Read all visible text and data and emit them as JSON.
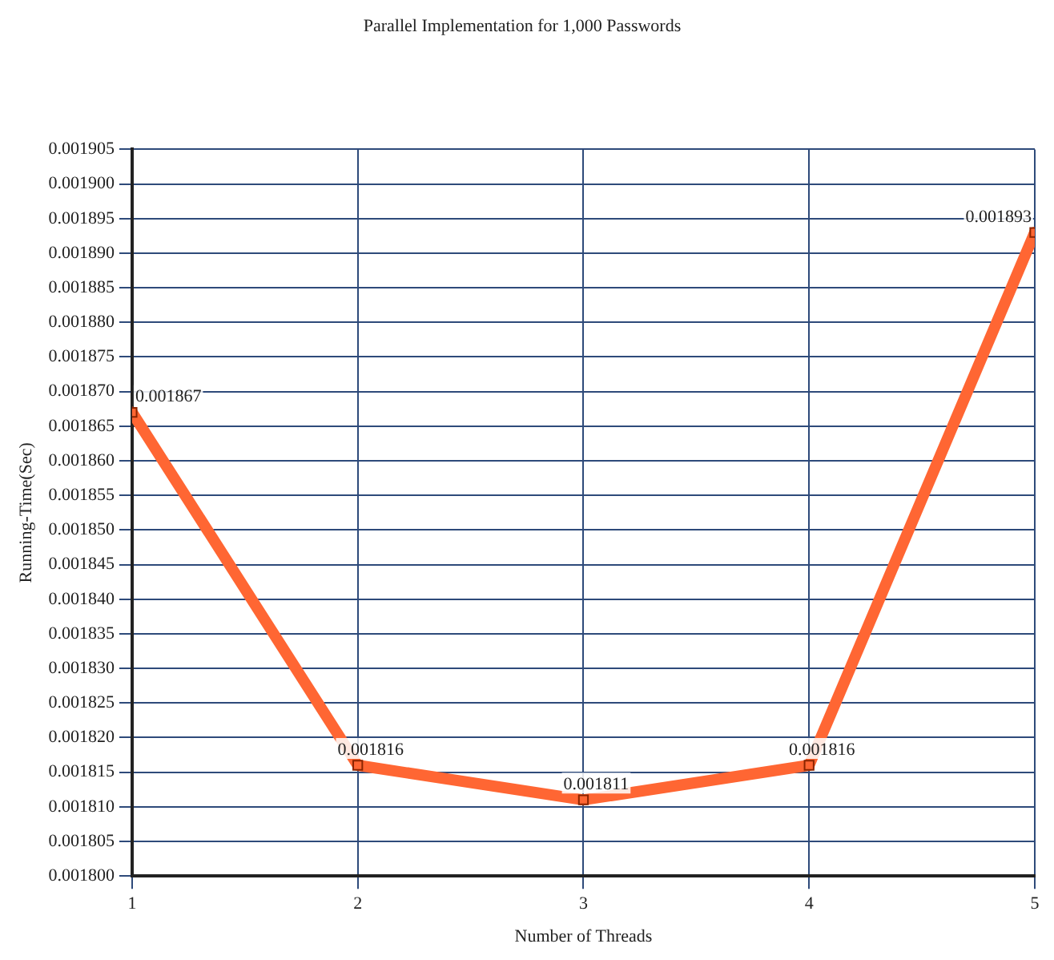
{
  "chart_data": {
    "type": "line",
    "title": "Parallel Implementation for 1,000 Passwords",
    "xlabel": "Number of Threads",
    "ylabel": "Running-Time(Sec)",
    "x": [
      1,
      2,
      3,
      4,
      5
    ],
    "series": [
      {
        "color": "#ff6633",
        "values": [
          0.001867,
          0.001816,
          0.001811,
          0.001816,
          0.001893
        ]
      }
    ],
    "xlim": [
      1,
      5
    ],
    "xticks": [
      1,
      2,
      3,
      4,
      5
    ],
    "ylim": [
      0.0018,
      0.001905
    ],
    "yticks": [
      {
        "value": 0.0018,
        "label": "0.001800"
      },
      {
        "value": 0.001805,
        "label": "0.001805"
      },
      {
        "value": 0.00181,
        "label": "0.001810"
      },
      {
        "value": 0.001815,
        "label": "0.001815"
      },
      {
        "value": 0.00182,
        "label": "0.001820"
      },
      {
        "value": 0.001825,
        "label": "0.001825"
      },
      {
        "value": 0.00183,
        "label": "0.001830"
      },
      {
        "value": 0.001835,
        "label": "0.001835"
      },
      {
        "value": 0.00184,
        "label": "0.001840"
      },
      {
        "value": 0.001845,
        "label": "0.001845"
      },
      {
        "value": 0.00185,
        "label": "0.001850"
      },
      {
        "value": 0.001855,
        "label": "0.001855"
      },
      {
        "value": 0.00186,
        "label": "0.001860"
      },
      {
        "value": 0.001865,
        "label": "0.001865"
      },
      {
        "value": 0.00187,
        "label": "0.001870"
      },
      {
        "value": 0.001875,
        "label": "0.001875"
      },
      {
        "value": 0.00188,
        "label": "0.001880"
      },
      {
        "value": 0.001885,
        "label": "0.001885"
      },
      {
        "value": 0.00189,
        "label": "0.001890"
      },
      {
        "value": 0.001895,
        "label": "0.001895"
      },
      {
        "value": 0.0019,
        "label": "0.001900"
      },
      {
        "value": 0.001905,
        "label": "0.001905"
      }
    ],
    "grid": true,
    "marker": "square",
    "line_style": "solid",
    "data_labels": true,
    "legend": false
  }
}
